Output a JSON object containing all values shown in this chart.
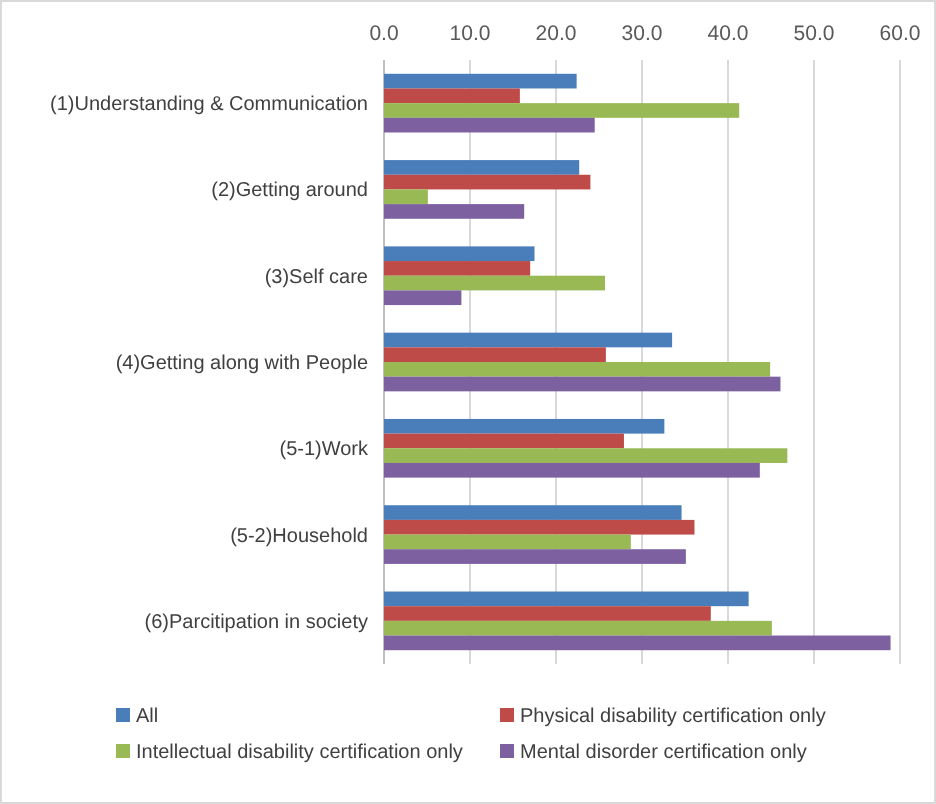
{
  "chart_data": {
    "type": "bar",
    "orientation": "horizontal",
    "categories": [
      "(1)Understanding & Communication",
      "(2)Getting around",
      "(3)Self care",
      "(4)Getting along with People",
      "(5-1)Work",
      "(5-2)Household",
      "(6)Parcitipation in society"
    ],
    "series": [
      {
        "name": "All",
        "color": "#4a7ebb",
        "values": [
          22.4,
          22.7,
          17.5,
          33.5,
          32.6,
          34.6,
          42.4
        ]
      },
      {
        "name": "Physical disability certification only",
        "color": "#be4b48",
        "values": [
          15.8,
          24.0,
          17.0,
          25.8,
          27.9,
          36.1,
          38.0
        ]
      },
      {
        "name": "Intellectual disability certification only",
        "color": "#98b954",
        "values": [
          41.3,
          5.1,
          25.7,
          44.9,
          46.9,
          28.7,
          45.1
        ]
      },
      {
        "name": "Mental disorder certification only",
        "color": "#7d60a0",
        "values": [
          24.5,
          16.3,
          9.0,
          46.1,
          43.7,
          35.1,
          58.9
        ]
      }
    ],
    "xlim": [
      0,
      60
    ],
    "xticks": [
      {
        "value": 0,
        "label": "0.0"
      },
      {
        "value": 10,
        "label": "10.0"
      },
      {
        "value": 20,
        "label": "20.0"
      },
      {
        "value": 30,
        "label": "30.0"
      },
      {
        "value": 40,
        "label": "40.0"
      },
      {
        "value": 50,
        "label": "50.0"
      },
      {
        "value": 60,
        "label": "60.0"
      }
    ],
    "grid": "x",
    "legend": "bottom"
  }
}
